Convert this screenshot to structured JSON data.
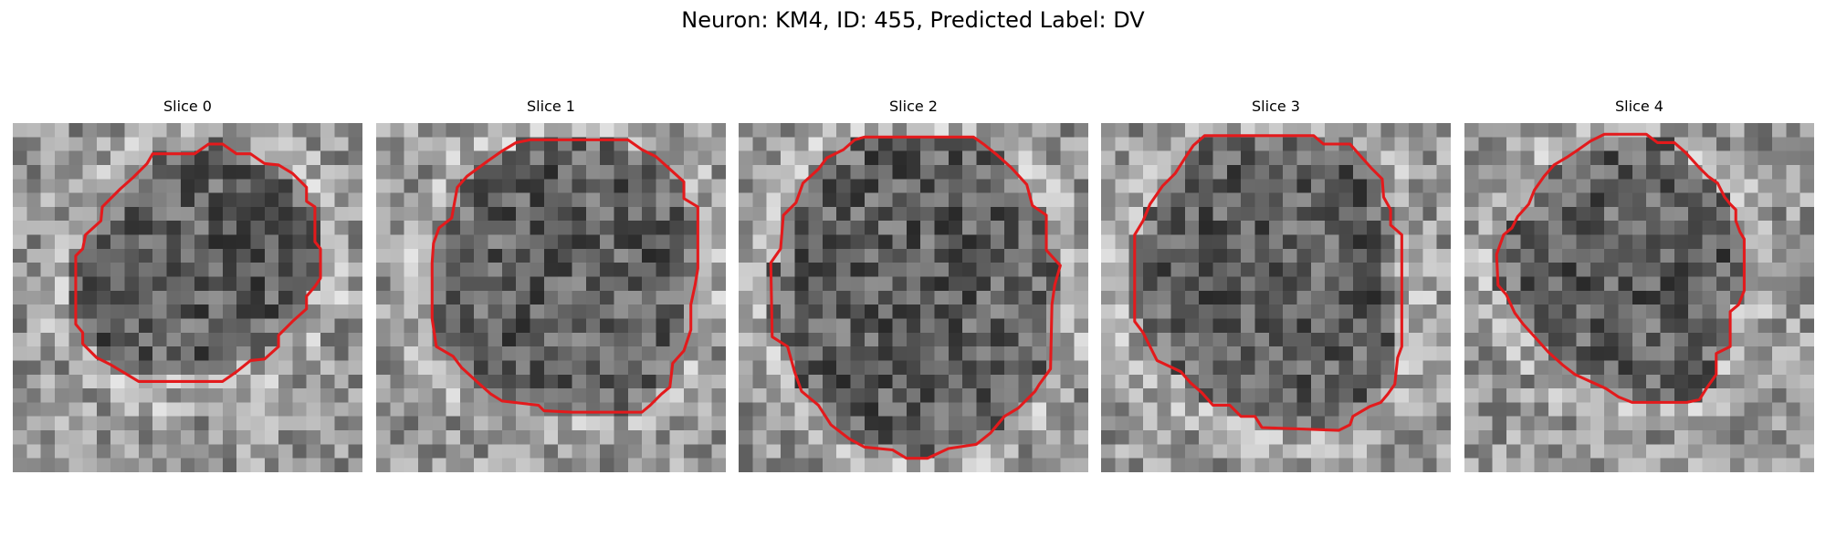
{
  "figure": {
    "title": "Neuron: KM4, ID: 455, Predicted Label: DV"
  },
  "panels": [
    {
      "title": "Slice 0",
      "image": "grayscale microscopy patch with dark roughly circular neuron body and red outline"
    },
    {
      "title": "Slice 1",
      "image": "grayscale microscopy patch with dark roughly circular neuron body and red outline"
    },
    {
      "title": "Slice 2",
      "image": "grayscale microscopy patch with dark roughly circular neuron body and red outline"
    },
    {
      "title": "Slice 3",
      "image": "grayscale microscopy patch with dark roughly circular neuron body and red outline"
    },
    {
      "title": "Slice 4",
      "image": "grayscale microscopy patch with dark roughly circular neuron body and red outline"
    }
  ],
  "colors": {
    "outline": "#e31a1c",
    "background": "#ffffff"
  }
}
